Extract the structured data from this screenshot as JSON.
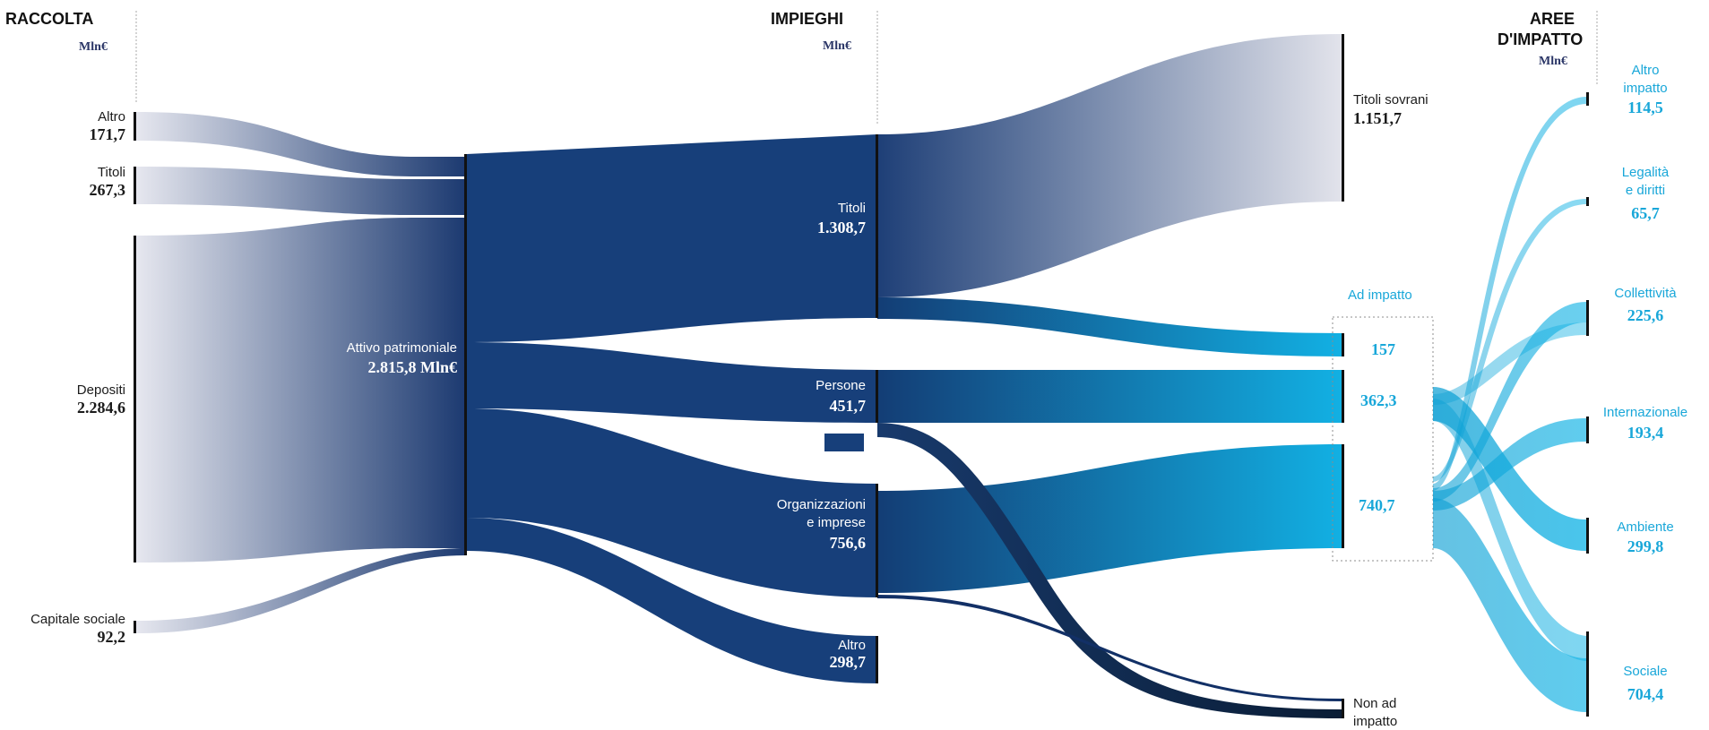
{
  "headers": {
    "raccolta": "RACCOLTA",
    "impieghi": "IMPIEGHI",
    "aree_1": "AREE",
    "aree_2": "D'IMPATTO",
    "unit": "Mln€"
  },
  "raccolta": [
    {
      "label": "Altro",
      "value": "171,7"
    },
    {
      "label": "Titoli",
      "value": "267,3"
    },
    {
      "label": "Depositi",
      "value": "2.284,6"
    },
    {
      "label": "Capitale sociale",
      "value": "92,2"
    }
  ],
  "attivo": {
    "label": "Attivo patrimoniale",
    "value": "2.815,8 Mln€"
  },
  "impieghi": [
    {
      "label": "Titoli",
      "value": "1.308,7"
    },
    {
      "label": "Persone",
      "value": "451,7"
    },
    {
      "label": "Organizzazioni",
      "label2": "e imprese",
      "value": "756,6"
    },
    {
      "label": "Altro",
      "value": "298,7"
    }
  ],
  "destinazioni": {
    "titoli_sovrani": {
      "label": "Titoli sovrani",
      "value": "1.151,7"
    },
    "ad_impatto": {
      "label": "Ad impatto",
      "values": [
        "157",
        "362,3",
        "740,7"
      ]
    },
    "non_impatto": {
      "label1": "Non ad",
      "label2": "impatto"
    }
  },
  "aree": [
    {
      "label": "Altro",
      "label2": "impatto",
      "value": "114,5"
    },
    {
      "label": "Legalità",
      "label2": "e diritti",
      "value": "65,7"
    },
    {
      "label": "Collettività",
      "value": "225,6"
    },
    {
      "label": "Internazionale",
      "value": "193,4"
    },
    {
      "label": "Ambiente",
      "value": "299,8"
    },
    {
      "label": "Sociale",
      "value": "704,4"
    }
  ],
  "colors": {
    "navy": "#163b73",
    "cyan": "#17b2e3",
    "dark": "#0d2240"
  }
}
